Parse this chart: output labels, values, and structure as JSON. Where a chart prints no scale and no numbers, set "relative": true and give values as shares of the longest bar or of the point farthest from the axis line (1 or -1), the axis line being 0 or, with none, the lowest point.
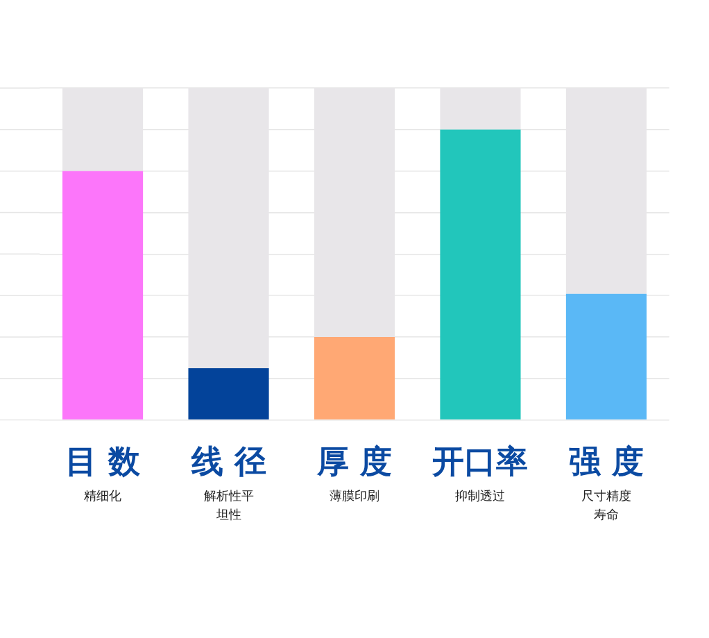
{
  "chart_data": {
    "type": "bar",
    "relative": true,
    "grid": "y",
    "stacked": true,
    "categories": [
      "目 数",
      "线 径",
      "厚 度",
      "开口率",
      "强 度"
    ],
    "series": [
      {
        "colors": [
          "#fc76fa",
          "#03439a",
          "#ffa874",
          "#22c6bb",
          "#5ab8f6"
        ],
        "values": [
          0.75,
          0.156,
          0.25,
          0.875,
          0.38
        ]
      },
      {
        "color": "#e8e6e9",
        "values": [
          0.25,
          0.844,
          0.75,
          0.125,
          0.62
        ]
      }
    ],
    "annotations": [
      "精细化",
      "解析性平坦性",
      "薄膜印刷",
      "抑制透过",
      "尺寸精度寿命"
    ]
  }
}
